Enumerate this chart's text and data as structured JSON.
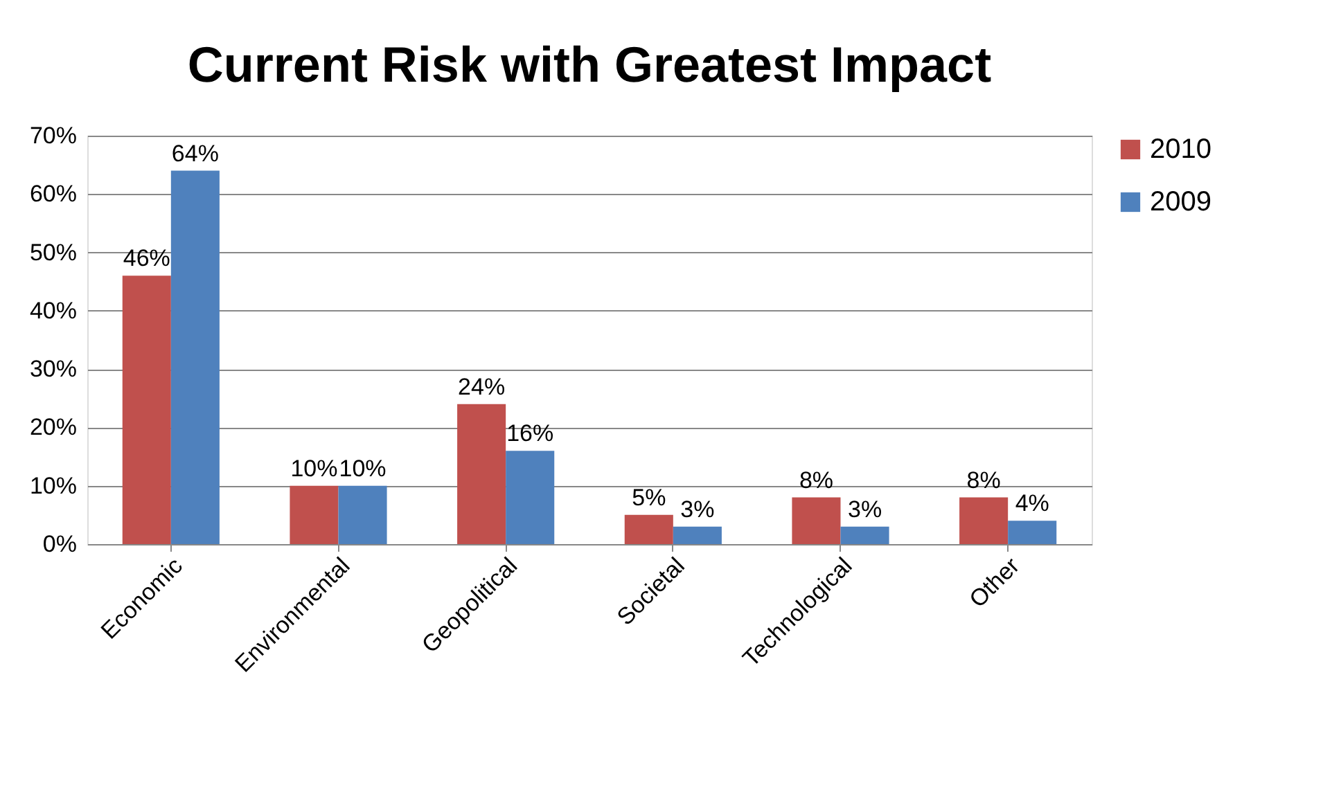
{
  "chart_data": {
    "type": "bar",
    "title": "Current Risk with Greatest Impact",
    "categories": [
      "Economic",
      "Environmental",
      "Geopolitical",
      "Societal",
      "Technological",
      "Other"
    ],
    "series": [
      {
        "name": "2010",
        "color": "#c0504d",
        "values": [
          46,
          10,
          24,
          5,
          8,
          8
        ],
        "value_labels": [
          "46%",
          "10%",
          "24%",
          "5%",
          "8%",
          "8%"
        ]
      },
      {
        "name": "2009",
        "color": "#4f81bd",
        "values": [
          64,
          10,
          16,
          3,
          3,
          4
        ],
        "value_labels": [
          "64%",
          "10%",
          "16%",
          "3%",
          "3%",
          "4%"
        ]
      }
    ],
    "ylim": [
      0,
      70
    ],
    "yticks": [
      {
        "value": 0,
        "label": "0%"
      },
      {
        "value": 10,
        "label": "10%"
      },
      {
        "value": 20,
        "label": "20%"
      },
      {
        "value": 30,
        "label": "30%"
      },
      {
        "value": 40,
        "label": "40%"
      },
      {
        "value": 50,
        "label": "50%"
      },
      {
        "value": 60,
        "label": "60%"
      },
      {
        "value": 70,
        "label": "70%"
      }
    ],
    "grid": "y",
    "legend": "right"
  }
}
